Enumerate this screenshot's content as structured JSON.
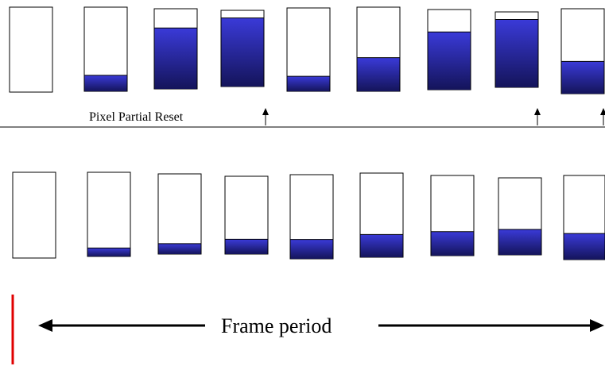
{
  "diagram": {
    "reset_label": "Pixel Partial Reset",
    "frame_label": "Frame period",
    "colors": {
      "fill_top": "#3a3ad8",
      "fill_bottom": "#14145a",
      "outline": "#000000",
      "marker": "#e00000"
    },
    "top_row": {
      "fill_levels": [
        0.0,
        0.19,
        0.76,
        0.9,
        0.18,
        0.4,
        0.72,
        0.9,
        0.38
      ],
      "reset_after": [
        3,
        7,
        8
      ]
    },
    "bottom_row": {
      "fill_levels": [
        0.0,
        0.1,
        0.13,
        0.19,
        0.23,
        0.27,
        0.3,
        0.33,
        0.31
      ]
    }
  }
}
